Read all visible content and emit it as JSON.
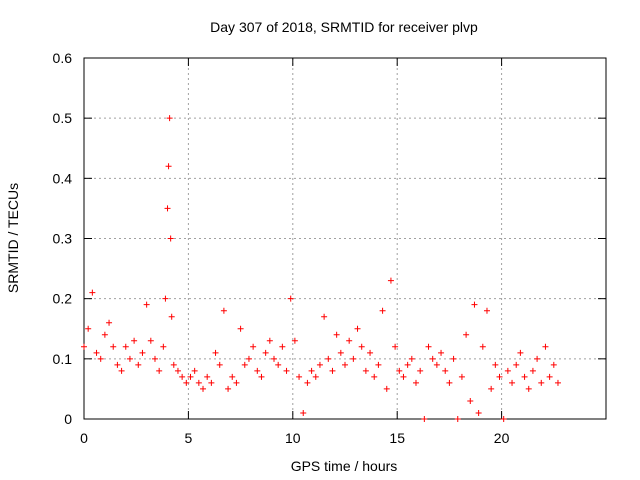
{
  "chart_data": {
    "type": "scatter",
    "title": "Day 307 of 2018, SRMTID for receiver plvp",
    "xlabel": "GPS time / hours",
    "ylabel": "SRMTID / TECUs",
    "xlim": [
      0,
      25
    ],
    "ylim": [
      0,
      0.6
    ],
    "x_ticks": [
      0,
      5,
      10,
      15,
      20
    ],
    "y_ticks": [
      0,
      0.1,
      0.2,
      0.3,
      0.4,
      0.5,
      0.6
    ],
    "x_tick_labels": [
      "0",
      "5",
      "10",
      "15",
      "20"
    ],
    "y_tick_labels": [
      "0",
      "0.1",
      "0.2",
      "0.3",
      "0.4",
      "0.5",
      "0.6"
    ],
    "grid": true,
    "marker": "+",
    "color": "#ff0000",
    "series": [
      {
        "name": "SRMTID",
        "x": [
          0.0,
          0.2,
          0.4,
          0.6,
          0.8,
          1.0,
          1.2,
          1.4,
          1.6,
          1.8,
          2.0,
          2.2,
          2.4,
          2.6,
          2.8,
          3.0,
          3.2,
          3.4,
          3.6,
          3.8,
          3.9,
          4.0,
          4.05,
          4.1,
          4.15,
          4.2,
          4.3,
          4.5,
          4.7,
          4.9,
          5.1,
          5.3,
          5.5,
          5.7,
          5.9,
          6.1,
          6.3,
          6.5,
          6.7,
          6.9,
          7.1,
          7.3,
          7.5,
          7.7,
          7.9,
          8.1,
          8.3,
          8.5,
          8.7,
          8.9,
          9.1,
          9.3,
          9.5,
          9.7,
          9.9,
          10.1,
          10.3,
          10.5,
          10.7,
          10.9,
          11.1,
          11.3,
          11.5,
          11.7,
          11.9,
          12.1,
          12.3,
          12.5,
          12.7,
          12.9,
          13.1,
          13.3,
          13.5,
          13.7,
          13.9,
          14.1,
          14.3,
          14.5,
          14.7,
          14.9,
          15.1,
          15.3,
          15.5,
          15.7,
          15.9,
          16.1,
          16.3,
          16.5,
          16.7,
          16.9,
          17.1,
          17.3,
          17.5,
          17.7,
          17.9,
          18.1,
          18.3,
          18.5,
          18.7,
          18.9,
          19.1,
          19.3,
          19.5,
          19.7,
          19.9,
          20.1,
          20.3,
          20.5,
          20.7,
          20.9,
          21.1,
          21.3,
          21.5,
          21.7,
          21.9,
          22.1,
          22.3,
          22.5,
          22.7
        ],
        "y": [
          0.12,
          0.15,
          0.21,
          0.11,
          0.1,
          0.14,
          0.16,
          0.12,
          0.09,
          0.08,
          0.12,
          0.1,
          0.13,
          0.09,
          0.11,
          0.19,
          0.13,
          0.1,
          0.08,
          0.12,
          0.2,
          0.35,
          0.42,
          0.5,
          0.3,
          0.17,
          0.09,
          0.08,
          0.07,
          0.06,
          0.07,
          0.08,
          0.06,
          0.05,
          0.07,
          0.06,
          0.11,
          0.09,
          0.18,
          0.05,
          0.07,
          0.06,
          0.15,
          0.09,
          0.1,
          0.12,
          0.08,
          0.07,
          0.11,
          0.13,
          0.1,
          0.09,
          0.12,
          0.08,
          0.2,
          0.13,
          0.07,
          0.01,
          0.06,
          0.08,
          0.07,
          0.09,
          0.17,
          0.1,
          0.08,
          0.14,
          0.11,
          0.09,
          0.13,
          0.1,
          0.15,
          0.12,
          0.08,
          0.11,
          0.07,
          0.09,
          0.18,
          0.05,
          0.23,
          0.12,
          0.08,
          0.07,
          0.09,
          0.1,
          0.06,
          0.08,
          0.0,
          0.12,
          0.1,
          0.09,
          0.11,
          0.08,
          0.06,
          0.1,
          0.0,
          0.07,
          0.14,
          0.03,
          0.19,
          0.01,
          0.12,
          0.18,
          0.05,
          0.09,
          0.07,
          0.0,
          0.08,
          0.06,
          0.09,
          0.11,
          0.07,
          0.05,
          0.08,
          0.1,
          0.06,
          0.12,
          0.07,
          0.09,
          0.06
        ]
      }
    ]
  }
}
